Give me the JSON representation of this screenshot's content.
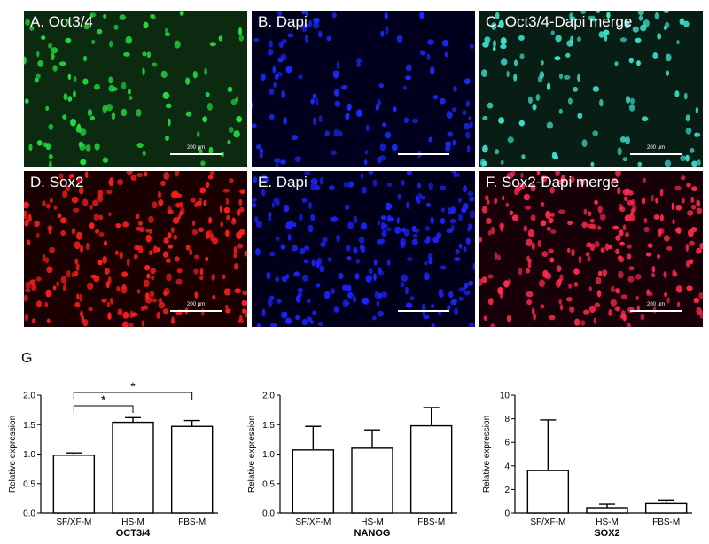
{
  "panels": [
    {
      "id": "A",
      "label": "A. Oct3/4",
      "bg": "#0b2a10",
      "dot": "#22e040",
      "density": 110,
      "scale_text": "200 µm"
    },
    {
      "id": "B",
      "label": "B. Dapi",
      "bg": "#00001e",
      "dot": "#1a2bff",
      "density": 110,
      "scale_text": ""
    },
    {
      "id": "C",
      "label": "C. Oct3/4-Dapi merge",
      "bg": "#081e14",
      "dot": "#3fe2d2",
      "density": 110,
      "scale_text": "200 µm"
    },
    {
      "id": "D",
      "label": "D. Sox2",
      "bg": "#1a0000",
      "dot": "#ff1e1e",
      "density": 240,
      "scale_text": "200 µm"
    },
    {
      "id": "E",
      "label": "E. Dapi",
      "bg": "#00001a",
      "dot": "#1e22ff",
      "density": 220,
      "scale_text": ""
    },
    {
      "id": "F",
      "label": "F. Sox2-Dapi merge",
      "bg": "#180008",
      "dot": "#ff2a50",
      "density": 230,
      "scale_text": "200 µm"
    }
  ],
  "figure_label": "G",
  "chart_data": [
    {
      "type": "bar",
      "categories": [
        "SF/XF-M",
        "HS-M",
        "FBS-M"
      ],
      "values": [
        0.98,
        1.54,
        1.47
      ],
      "errors": [
        0.04,
        0.08,
        0.1
      ],
      "xlabel": "OCT3/4",
      "ylabel": "Relative expression",
      "ylim": [
        0,
        2.0
      ],
      "yticks": [
        "0.0",
        "0.5",
        "1.0",
        "1.5",
        "2.0"
      ],
      "significance": [
        {
          "from": 0,
          "to": 1,
          "label": "*"
        },
        {
          "from": 0,
          "to": 2,
          "label": "*"
        }
      ]
    },
    {
      "type": "bar",
      "categories": [
        "SF/XF-M",
        "HS-M",
        "FBS-M"
      ],
      "values": [
        1.07,
        1.1,
        1.48
      ],
      "errors": [
        0.4,
        0.31,
        0.31
      ],
      "xlabel": "NANOG",
      "ylabel": "Relative expression",
      "ylim": [
        0,
        2.0
      ],
      "yticks": [
        "0.0",
        "0.5",
        "1.0",
        "1.5",
        "2.0"
      ],
      "significance": []
    },
    {
      "type": "bar",
      "categories": [
        "SF/XF-M",
        "HS-M",
        "FBS-M"
      ],
      "values": [
        3.6,
        0.45,
        0.8
      ],
      "errors": [
        4.3,
        0.3,
        0.3
      ],
      "xlabel": "SOX2",
      "ylabel": "Relative expression",
      "ylim": [
        0,
        10
      ],
      "yticks": [
        "0",
        "2",
        "4",
        "6",
        "8",
        "10"
      ],
      "significance": []
    }
  ]
}
